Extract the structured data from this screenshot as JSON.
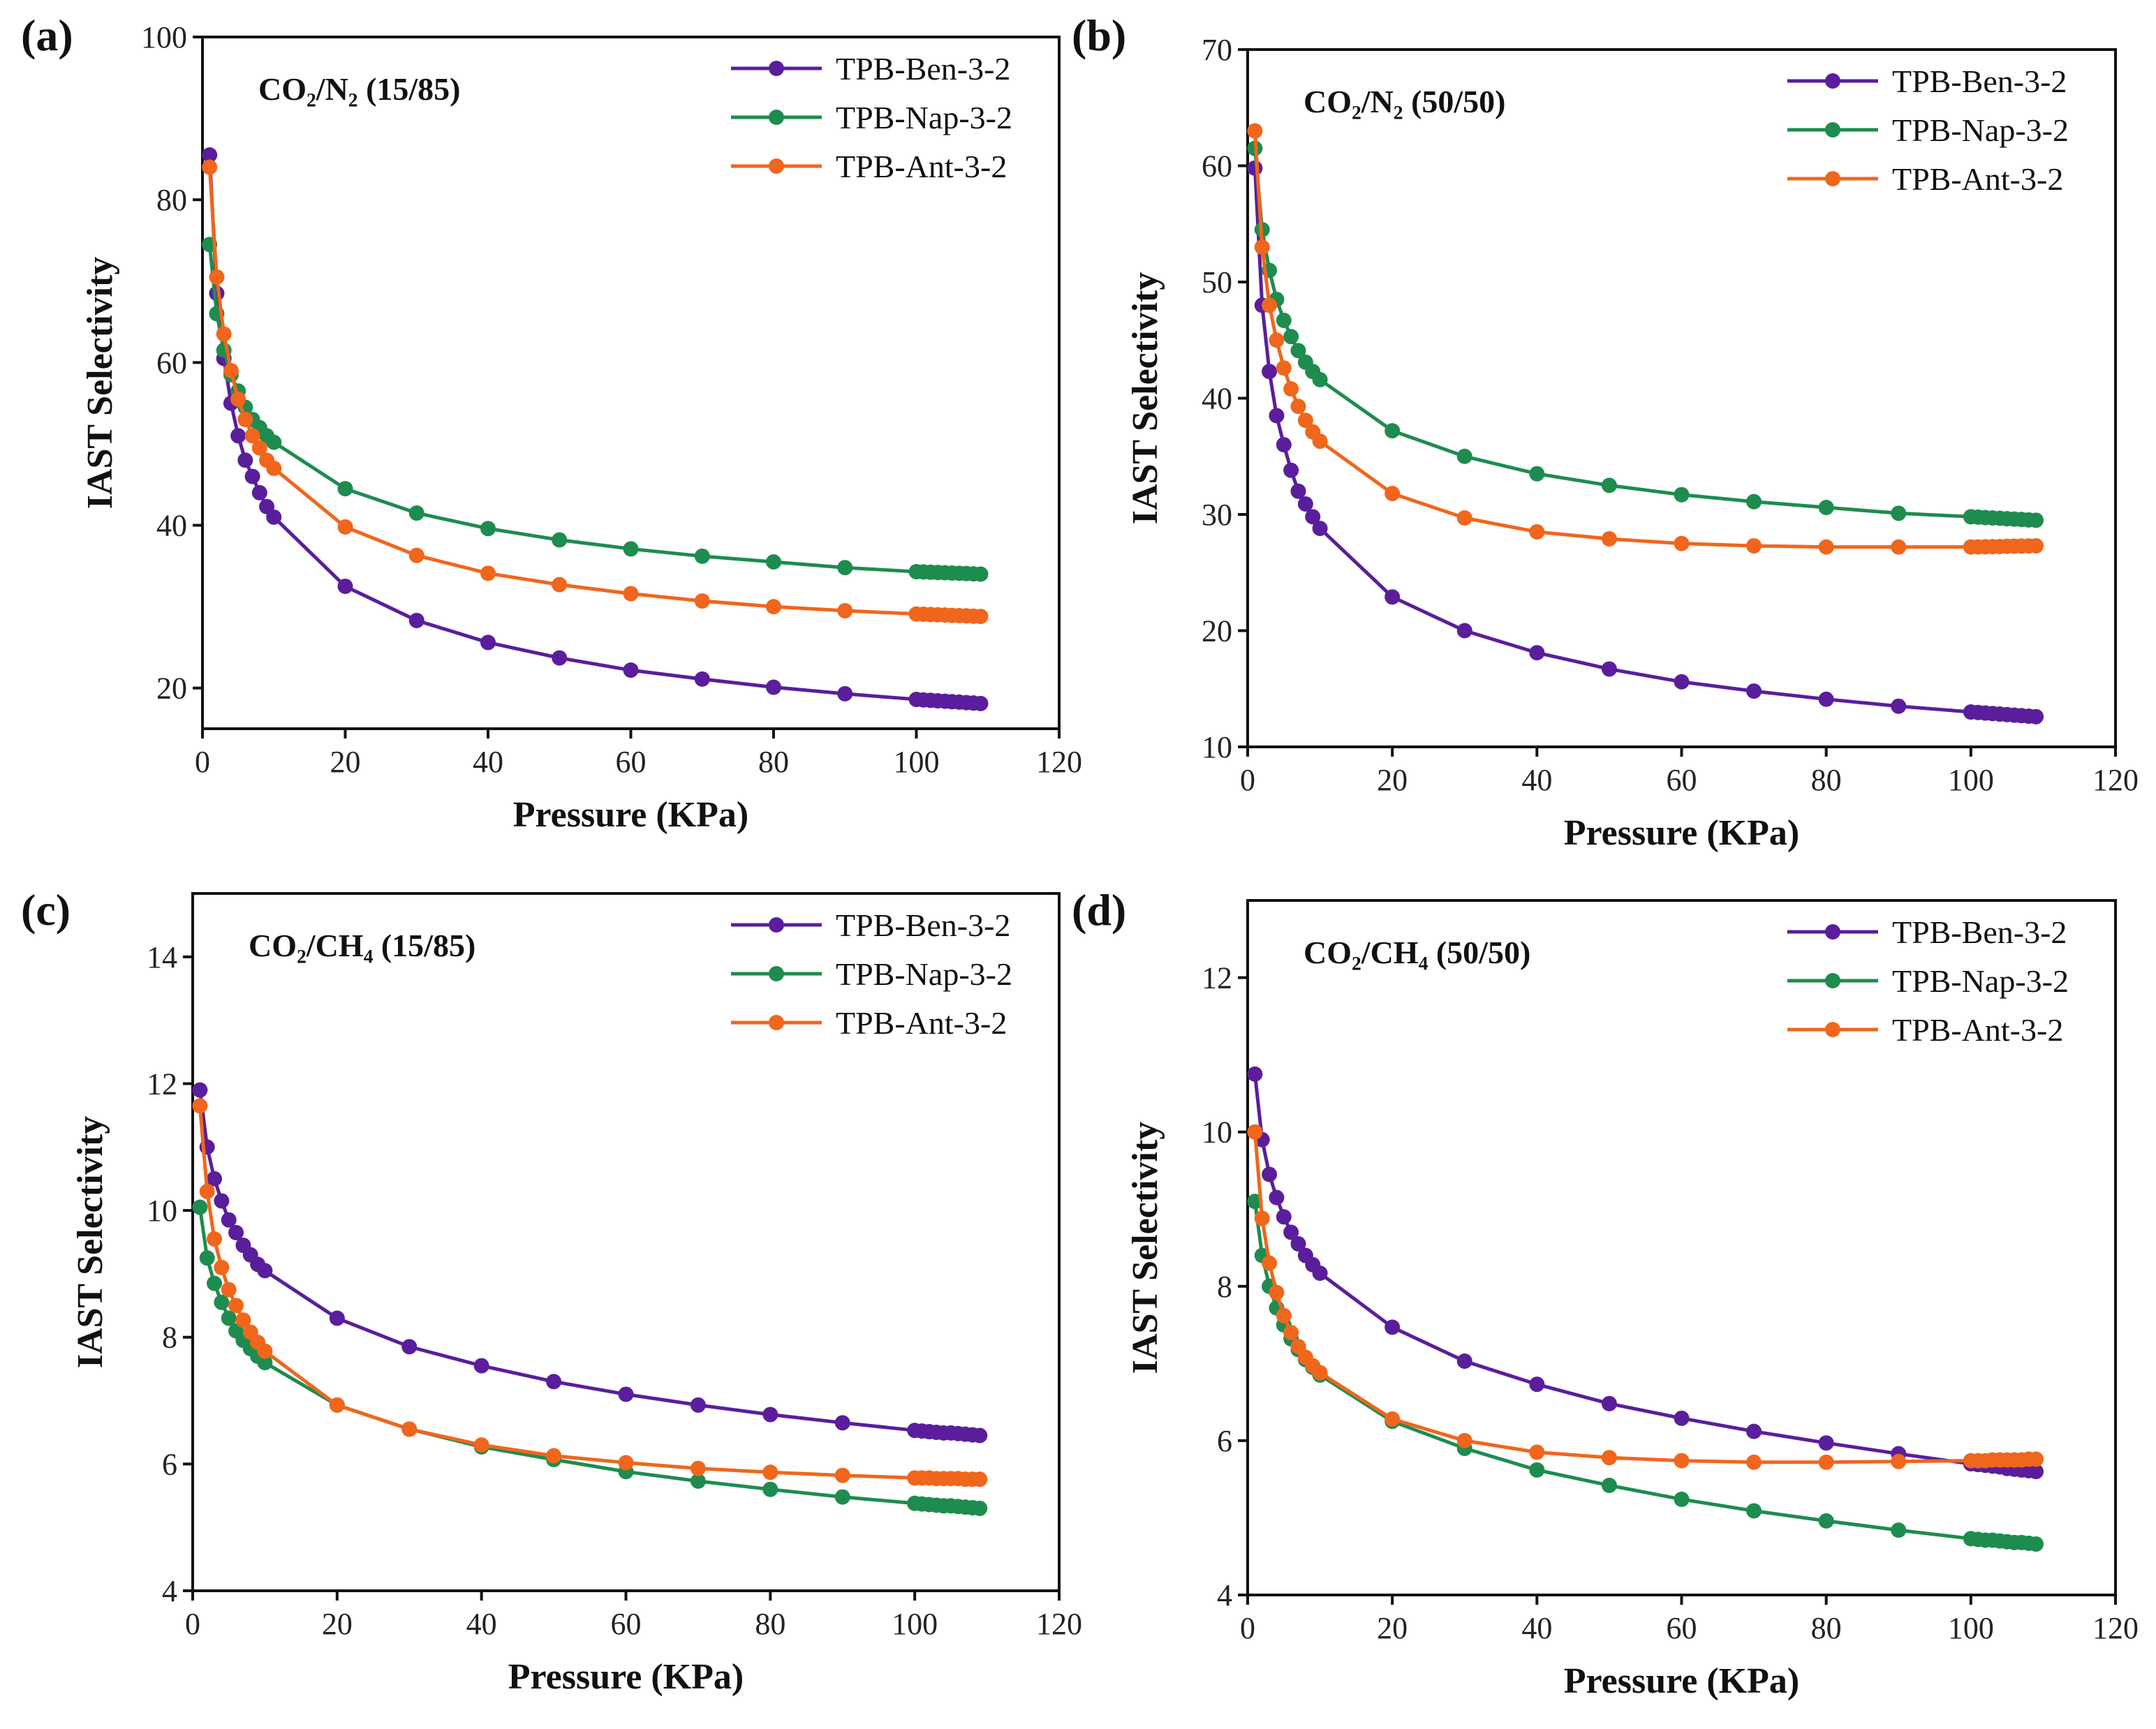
{
  "chart_data": [
    {
      "type": "line",
      "panel_label": "(a)",
      "title": "CO₂/N₂ (15/85)",
      "xlabel": "Pressure (KPa)",
      "ylabel": "IAST Selectivity",
      "xlim": [
        0,
        120
      ],
      "ylim": [
        15,
        100
      ],
      "xticks": [
        0,
        20,
        40,
        60,
        80,
        100,
        120
      ],
      "yticks": [
        20,
        40,
        60,
        80,
        100
      ],
      "legend_position": "top-right",
      "x": [
        1,
        2,
        3,
        4,
        5,
        6,
        7,
        8,
        9,
        10,
        20,
        30,
        40,
        50,
        60,
        70,
        80,
        90,
        100,
        101,
        102,
        103,
        104,
        105,
        106,
        107,
        108,
        109
      ],
      "series": [
        {
          "name": "TPB-Ben-3-2",
          "color": "#5a1e9c",
          "values": [
            85.5,
            68.5,
            60.5,
            55,
            51,
            48,
            46,
            44,
            42.3,
            41,
            32.5,
            28.3,
            25.6,
            23.7,
            22.2,
            21.1,
            20.1,
            19.3,
            18.6,
            18.54,
            18.49,
            18.43,
            18.38,
            18.32,
            18.27,
            18.21,
            18.16,
            18.1
          ]
        },
        {
          "name": "TPB-Nap-3-2",
          "color": "#1e8c4e",
          "values": [
            74.5,
            66,
            61.5,
            58.5,
            56.5,
            54.5,
            53,
            52,
            51,
            50.2,
            44.5,
            41.5,
            39.6,
            38.2,
            37.1,
            36.2,
            35.5,
            34.8,
            34.3,
            34.27,
            34.23,
            34.2,
            34.17,
            34.13,
            34.1,
            34.07,
            34.03,
            34.0
          ]
        },
        {
          "name": "TPB-Ant-3-2",
          "color": "#f0661c",
          "values": [
            84,
            70.5,
            63.5,
            59,
            55.5,
            53,
            51,
            49.5,
            48,
            47,
            39.8,
            36.3,
            34.1,
            32.7,
            31.6,
            30.7,
            30,
            29.5,
            29.1,
            29.07,
            29.03,
            29.0,
            28.97,
            28.93,
            28.9,
            28.87,
            28.83,
            28.8
          ]
        }
      ]
    },
    {
      "type": "line",
      "panel_label": "(b)",
      "title": "CO₂/N₂ (50/50)",
      "xlabel": "Pressure (KPa)",
      "ylabel": "IAST Selectivity",
      "xlim": [
        0,
        120
      ],
      "ylim": [
        10,
        70
      ],
      "xticks": [
        0,
        20,
        40,
        60,
        80,
        100,
        120
      ],
      "yticks": [
        10,
        20,
        30,
        40,
        50,
        60,
        70
      ],
      "legend_position": "top-right",
      "x": [
        1,
        2,
        3,
        4,
        5,
        6,
        7,
        8,
        9,
        10,
        20,
        30,
        40,
        50,
        60,
        70,
        80,
        90,
        100,
        101,
        102,
        103,
        104,
        105,
        106,
        107,
        108,
        109
      ],
      "series": [
        {
          "name": "TPB-Ben-3-2",
          "color": "#5a1e9c",
          "values": [
            59.8,
            48,
            42.3,
            38.5,
            36,
            33.8,
            32,
            30.9,
            29.8,
            28.8,
            22.9,
            20,
            18.1,
            16.7,
            15.6,
            14.8,
            14.1,
            13.5,
            13,
            12.96,
            12.91,
            12.87,
            12.82,
            12.78,
            12.73,
            12.69,
            12.64,
            12.6
          ]
        },
        {
          "name": "TPB-Nap-3-2",
          "color": "#1e8c4e",
          "values": [
            61.5,
            54.5,
            51,
            48.5,
            46.7,
            45.3,
            44.1,
            43.1,
            42.3,
            41.6,
            37.2,
            35,
            33.5,
            32.5,
            31.7,
            31.1,
            30.6,
            30.1,
            29.8,
            29.77,
            29.73,
            29.7,
            29.67,
            29.63,
            29.6,
            29.57,
            29.53,
            29.5
          ]
        },
        {
          "name": "TPB-Ant-3-2",
          "color": "#f0661c",
          "values": [
            63,
            53,
            48,
            45,
            42.6,
            40.8,
            39.3,
            38.1,
            37.1,
            36.3,
            31.8,
            29.7,
            28.5,
            27.9,
            27.5,
            27.3,
            27.2,
            27.2,
            27.2,
            27.21,
            27.22,
            27.23,
            27.24,
            27.26,
            27.27,
            27.28,
            27.29,
            27.3
          ]
        }
      ]
    },
    {
      "type": "line",
      "panel_label": "(c)",
      "title": "CO₂/CH₄ (15/85)",
      "xlabel": "Pressure (KPa)",
      "ylabel": "IAST Selectivity",
      "xlim": [
        0,
        120
      ],
      "ylim": [
        4,
        15
      ],
      "xticks": [
        0,
        20,
        40,
        60,
        80,
        100,
        120
      ],
      "yticks": [
        4,
        6,
        8,
        10,
        12,
        14
      ],
      "legend_position": "top-right",
      "x": [
        1,
        2,
        3,
        4,
        5,
        6,
        7,
        8,
        9,
        10,
        20,
        30,
        40,
        50,
        60,
        70,
        80,
        90,
        100,
        101,
        102,
        103,
        104,
        105,
        106,
        107,
        108,
        109
      ],
      "series": [
        {
          "name": "TPB-Ben-3-2",
          "color": "#5a1e9c",
          "values": [
            11.9,
            11,
            10.5,
            10.15,
            9.85,
            9.65,
            9.45,
            9.3,
            9.15,
            9.05,
            8.3,
            7.85,
            7.55,
            7.3,
            7.1,
            6.93,
            6.78,
            6.65,
            6.53,
            6.52,
            6.51,
            6.5,
            6.49,
            6.49,
            6.48,
            6.47,
            6.46,
            6.45
          ]
        },
        {
          "name": "TPB-Nap-3-2",
          "color": "#1e8c4e",
          "values": [
            10.05,
            9.25,
            8.85,
            8.55,
            8.3,
            8.1,
            7.95,
            7.82,
            7.7,
            7.6,
            6.93,
            6.55,
            6.27,
            6.07,
            5.88,
            5.73,
            5.6,
            5.48,
            5.38,
            5.37,
            5.36,
            5.35,
            5.34,
            5.34,
            5.33,
            5.32,
            5.31,
            5.3
          ]
        },
        {
          "name": "TPB-Ant-3-2",
          "color": "#f0661c",
          "values": [
            11.65,
            10.3,
            9.55,
            9.1,
            8.75,
            8.5,
            8.27,
            8.08,
            7.92,
            7.78,
            6.93,
            6.55,
            6.3,
            6.13,
            6.02,
            5.93,
            5.87,
            5.82,
            5.78,
            5.78,
            5.78,
            5.77,
            5.77,
            5.77,
            5.77,
            5.76,
            5.76,
            5.76
          ]
        }
      ]
    },
    {
      "type": "line",
      "panel_label": "(d)",
      "title": "CO₂/CH₄ (50/50)",
      "xlabel": "Pressure (KPa)",
      "ylabel": "IAST Selectivity",
      "xlim": [
        0,
        120
      ],
      "ylim": [
        4,
        13
      ],
      "xticks": [
        0,
        20,
        40,
        60,
        80,
        100,
        120
      ],
      "yticks": [
        4,
        6,
        8,
        10,
        12
      ],
      "legend_position": "top-right",
      "x": [
        1,
        2,
        3,
        4,
        5,
        6,
        7,
        8,
        9,
        10,
        20,
        30,
        40,
        50,
        60,
        70,
        80,
        90,
        100,
        101,
        102,
        103,
        104,
        105,
        106,
        107,
        108,
        109
      ],
      "series": [
        {
          "name": "TPB-Ben-3-2",
          "color": "#5a1e9c",
          "values": [
            10.75,
            9.9,
            9.45,
            9.15,
            8.9,
            8.7,
            8.55,
            8.4,
            8.28,
            8.17,
            7.47,
            7.03,
            6.73,
            6.48,
            6.29,
            6.12,
            5.97,
            5.83,
            5.7,
            5.69,
            5.68,
            5.67,
            5.66,
            5.64,
            5.63,
            5.62,
            5.61,
            5.6
          ]
        },
        {
          "name": "TPB-Nap-3-2",
          "color": "#1e8c4e",
          "values": [
            9.1,
            8.4,
            8.0,
            7.72,
            7.5,
            7.32,
            7.18,
            7.05,
            6.95,
            6.85,
            6.25,
            5.9,
            5.62,
            5.42,
            5.24,
            5.09,
            4.96,
            4.84,
            4.73,
            4.72,
            4.71,
            4.71,
            4.7,
            4.69,
            4.68,
            4.68,
            4.67,
            4.66
          ]
        },
        {
          "name": "TPB-Ant-3-2",
          "color": "#f0661c",
          "values": [
            10,
            8.88,
            8.3,
            7.92,
            7.62,
            7.4,
            7.22,
            7.08,
            6.97,
            6.88,
            6.28,
            6.0,
            5.85,
            5.78,
            5.74,
            5.72,
            5.72,
            5.73,
            5.74,
            5.74,
            5.74,
            5.75,
            5.75,
            5.75,
            5.75,
            5.75,
            5.76,
            5.76
          ]
        }
      ]
    }
  ]
}
